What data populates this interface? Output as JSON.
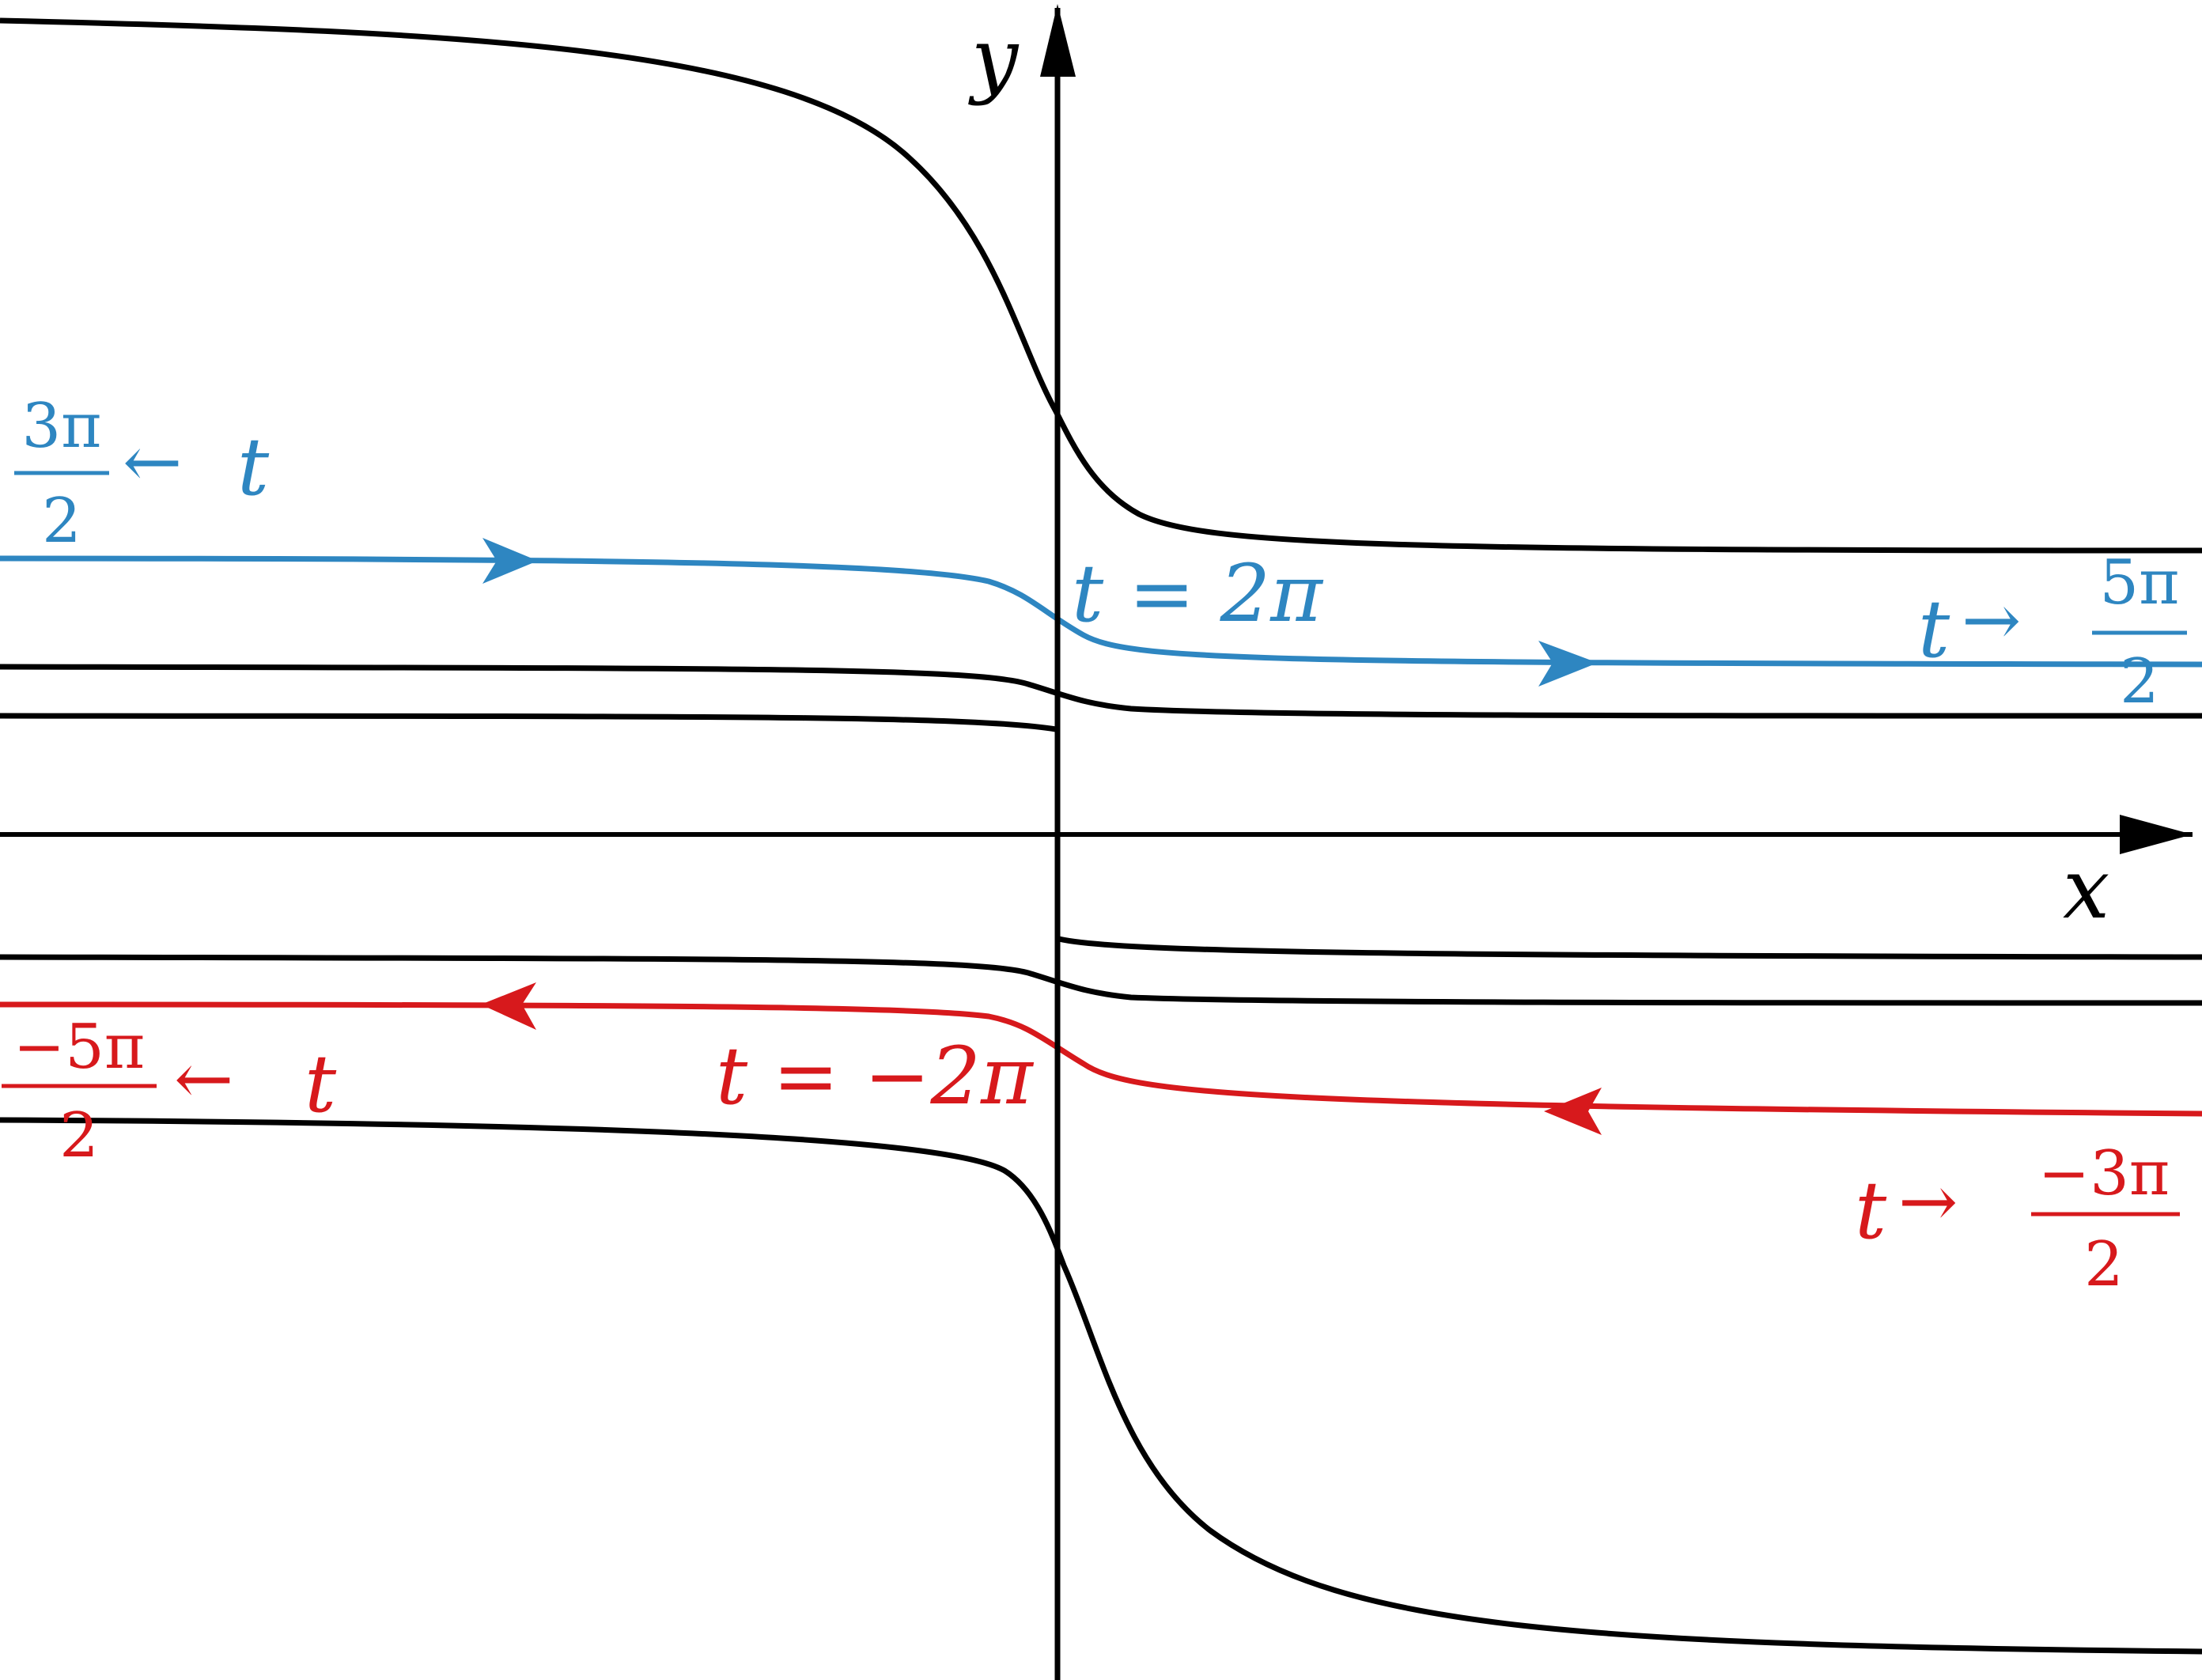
{
  "colors": {
    "axis": "#000000",
    "curve": "#000000",
    "blue": "#2E86C1",
    "red": "#D7191C"
  },
  "axes": {
    "x_label": "x",
    "y_label": "y"
  },
  "labels": {
    "blue_left": {
      "num": "3π",
      "den": "2",
      "arrow": "←",
      "var": "t"
    },
    "blue_mid": {
      "text": "t = 2π"
    },
    "blue_right": {
      "var": "t",
      "arrow": "→",
      "num": "5π",
      "den": "2"
    },
    "red_left": {
      "num": "−5π",
      "den": "2",
      "arrow": "←",
      "var": "t"
    },
    "red_mid": {
      "text": "t = −2π"
    },
    "red_right": {
      "var": "t",
      "arrow": "→",
      "num": "−3π",
      "den": "2"
    }
  }
}
